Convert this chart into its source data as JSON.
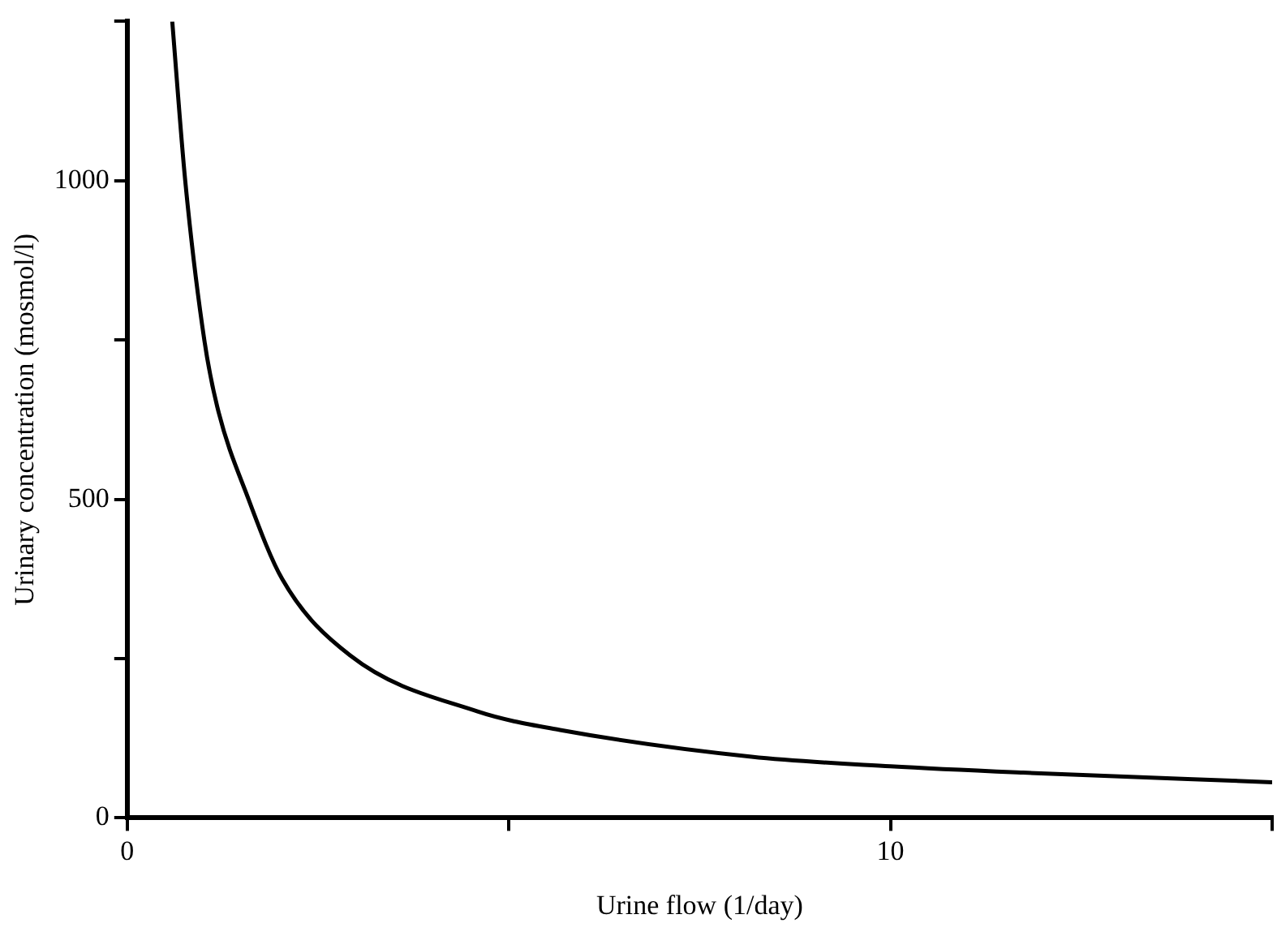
{
  "chart_data": {
    "type": "line",
    "xlabel": "Urine flow (1/day)",
    "ylabel": "Urinary concentration (mosmol/l)",
    "x": [
      0.59,
      0.76,
      1.01,
      1.18,
      1.59,
      2.03,
      2.92,
      4.59,
      5.67,
      8.18,
      10,
      11.74,
      15
    ],
    "series": [
      {
        "color": "#000000",
        "values": [
          1250,
          1000,
          750,
          645,
          500,
          375,
          255,
          167,
          138,
          96,
          81,
          71,
          56
        ]
      }
    ],
    "xlim": [
      0,
      15
    ],
    "xticks": [
      0,
      {
        "value": 5,
        "label": null
      },
      10,
      {
        "value": 15,
        "label": null
      }
    ],
    "ylim": [
      0,
      1250
    ],
    "yticks": [
      0,
      {
        "value": 250,
        "label": null
      },
      500,
      {
        "value": 750,
        "label": null
      },
      1000,
      {
        "value": 1250,
        "label": null
      }
    ],
    "grid": false,
    "legend": false,
    "marker": "none",
    "line_style": "solid"
  }
}
